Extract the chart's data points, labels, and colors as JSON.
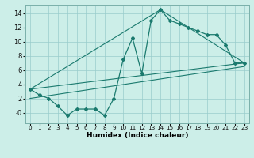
{
  "xlabel": "Humidex (Indice chaleur)",
  "bg_color": "#cceee8",
  "grid_color": "#99cccc",
  "line_color": "#1a7a6e",
  "xlim": [
    -0.5,
    23.5
  ],
  "ylim": [
    -1.5,
    15.2
  ],
  "xticks": [
    0,
    1,
    2,
    3,
    4,
    5,
    6,
    7,
    8,
    9,
    10,
    11,
    12,
    13,
    14,
    15,
    16,
    17,
    18,
    19,
    20,
    21,
    22,
    23
  ],
  "yticks": [
    0,
    2,
    4,
    6,
    8,
    10,
    12,
    14
  ],
  "ytick_labels": [
    "-0",
    "2",
    "4",
    "6",
    "8",
    "10",
    "12",
    "14"
  ],
  "main_x": [
    0,
    1,
    2,
    3,
    4,
    5,
    6,
    7,
    8,
    9,
    10,
    11,
    12,
    13,
    14,
    15,
    16,
    17,
    18,
    19,
    20,
    21,
    22,
    23
  ],
  "main_y": [
    3.3,
    2.5,
    2.0,
    0.9,
    -0.4,
    0.5,
    0.5,
    0.5,
    -0.4,
    2.0,
    7.5,
    10.5,
    5.5,
    13.0,
    14.5,
    13.0,
    12.5,
    12.0,
    11.5,
    11.0,
    11.0,
    9.5,
    7.0,
    7.0
  ],
  "line1_x": [
    0,
    23
  ],
  "line1_y": [
    3.3,
    7.0
  ],
  "line2_x": [
    0,
    14,
    23
  ],
  "line2_y": [
    3.3,
    14.5,
    7.0
  ],
  "line3_x": [
    0,
    23
  ],
  "line3_y": [
    2.0,
    6.5
  ]
}
